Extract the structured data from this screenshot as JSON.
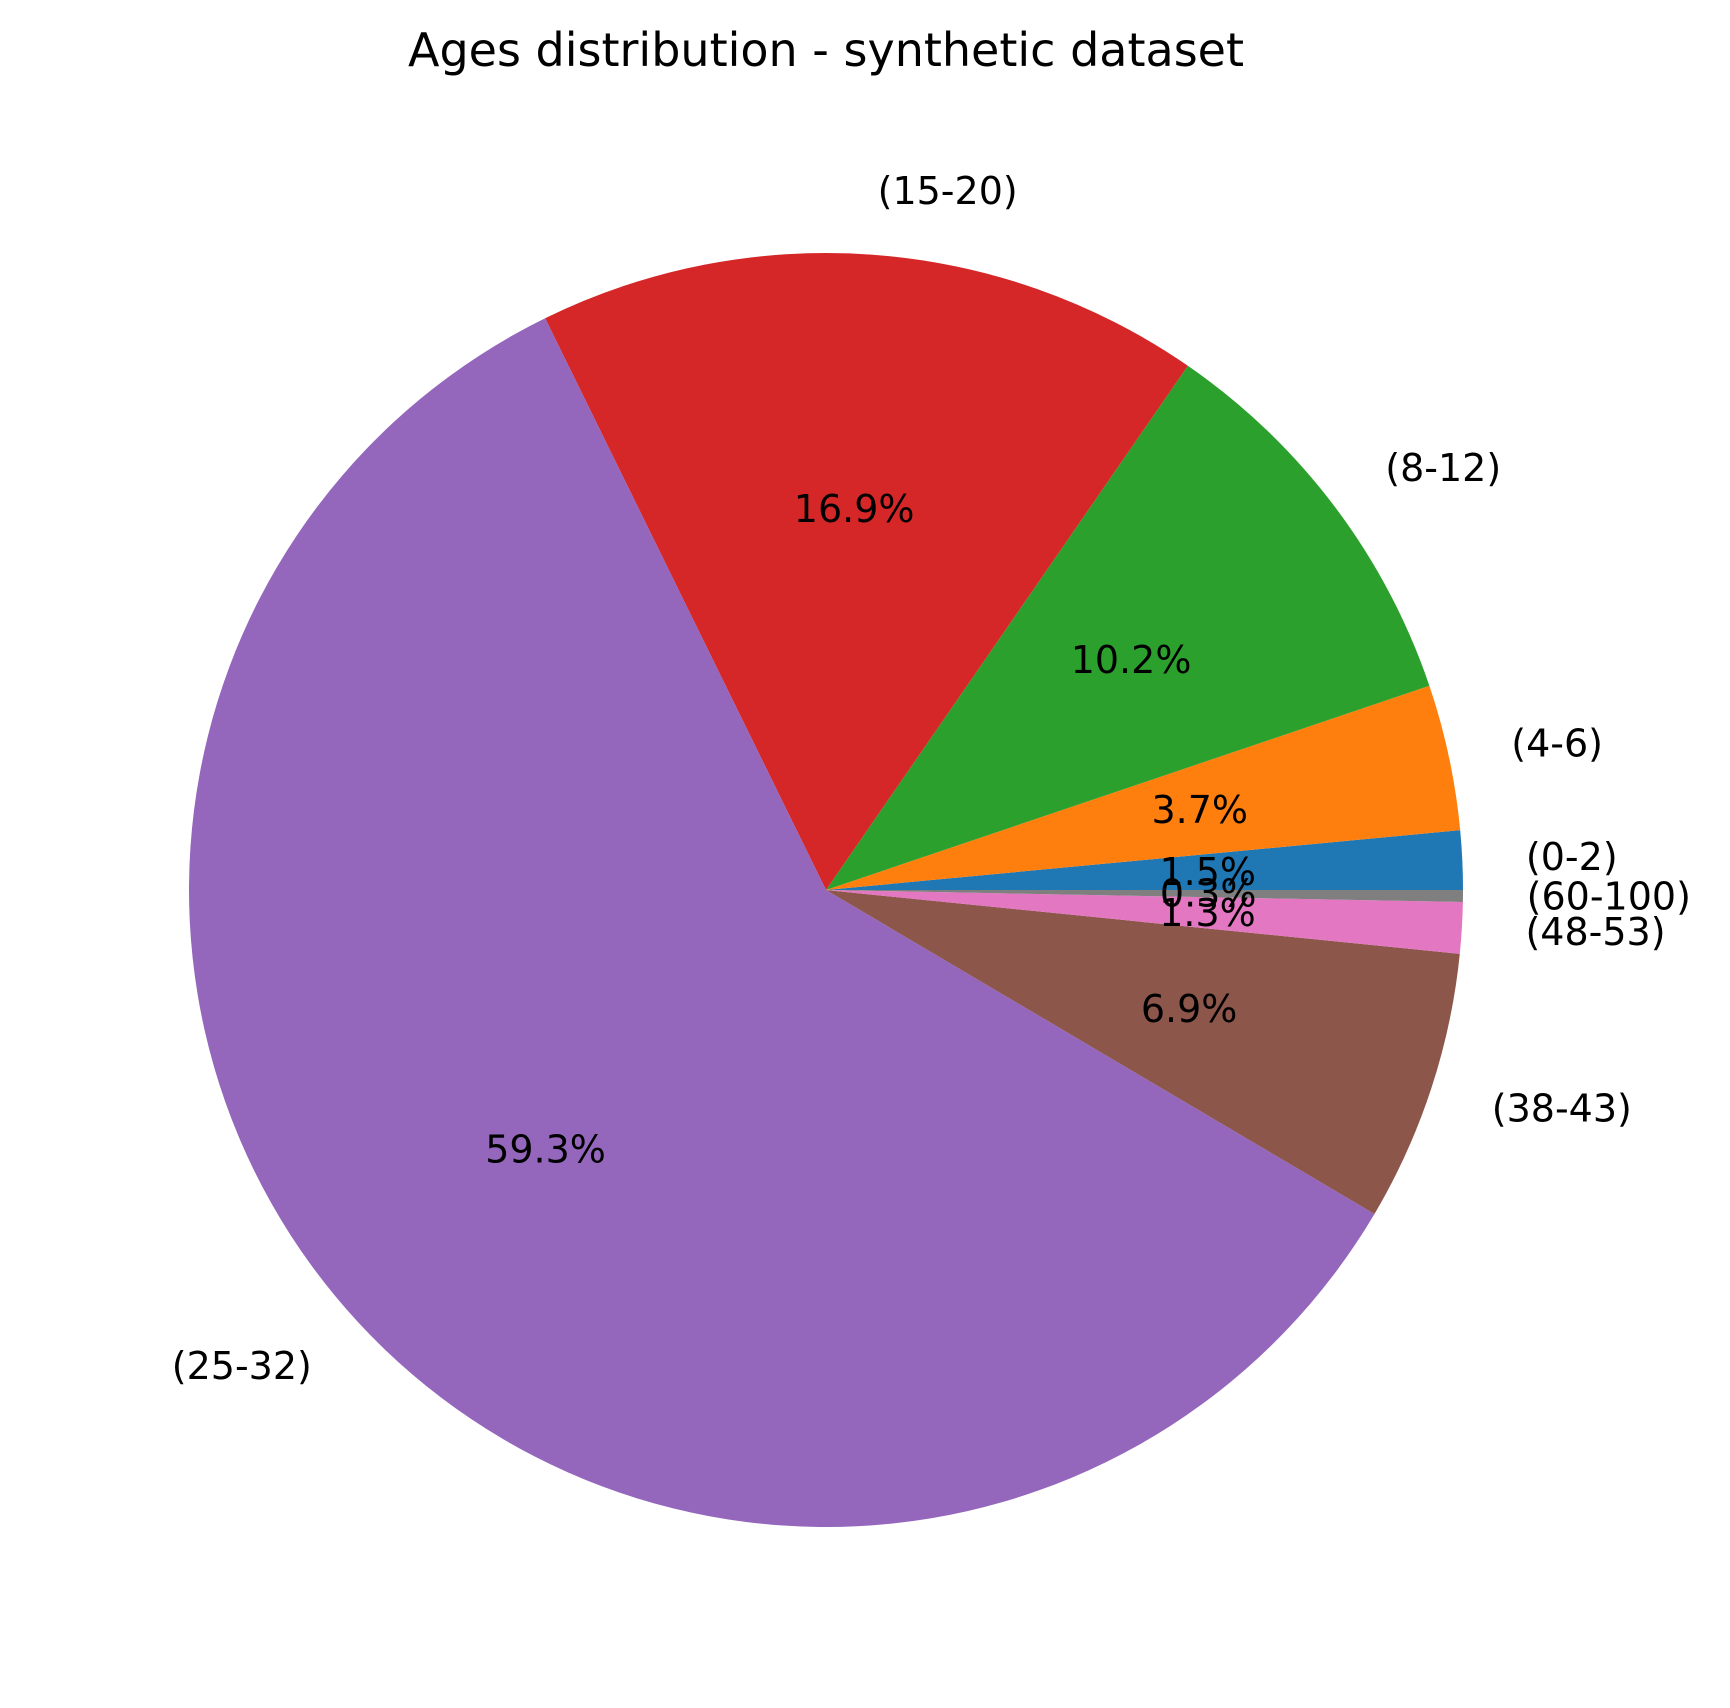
{
  "chart_data": {
    "type": "pie",
    "title": "Ages distribution - synthetic dataset",
    "start_angle_deg": 0,
    "direction": "counterclockwise",
    "slices": [
      {
        "label": "(0-2)",
        "value": 1.5,
        "pct_label": "1.5%",
        "color": "#1f77b4"
      },
      {
        "label": "(4-6)",
        "value": 3.7,
        "pct_label": "3.7%",
        "color": "#ff7f0e"
      },
      {
        "label": "(8-12)",
        "value": 10.2,
        "pct_label": "10.2%",
        "color": "#2ca02c"
      },
      {
        "label": "(15-20)",
        "value": 16.9,
        "pct_label": "16.9%",
        "color": "#d62728"
      },
      {
        "label": "(25-32)",
        "value": 59.3,
        "pct_label": "59.3%",
        "color": "#9467bd"
      },
      {
        "label": "(38-43)",
        "value": 6.9,
        "pct_label": "6.9%",
        "color": "#8c564b"
      },
      {
        "label": "(48-53)",
        "value": 1.3,
        "pct_label": "1.3%",
        "color": "#e377c2"
      },
      {
        "label": "(60-100)",
        "value": 0.3,
        "pct_label": "0.3%",
        "color": "#7f7f7f"
      }
    ]
  }
}
